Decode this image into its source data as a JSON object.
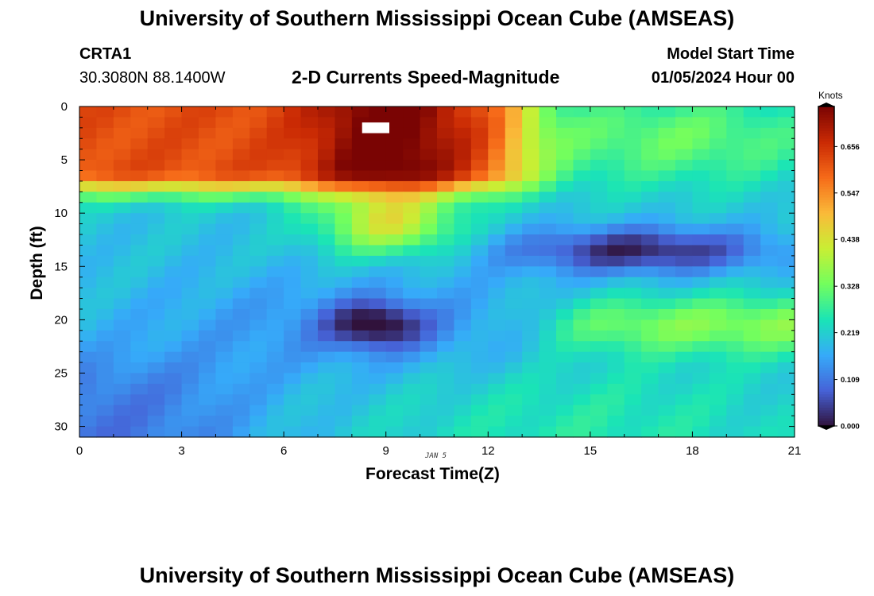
{
  "header": {
    "title": "University of Southern Mississippi Ocean Cube (AMSEAS)",
    "station": "CRTA1",
    "coords": "30.3080N  88.1400W",
    "subtitle": "2-D Currents Speed-Magnitude",
    "model_start_label": "Model Start Time",
    "model_start_value": "01/05/2024 Hour 00"
  },
  "footer": {
    "title": "University of Southern Mississippi Ocean Cube (AMSEAS)"
  },
  "chart_data": {
    "type": "heatmap",
    "xlabel": "Forecast Time(Z)",
    "ylabel": "Depth (ft)",
    "date_label": "JAN 5",
    "xlim": [
      0,
      21
    ],
    "ylim": [
      0,
      31
    ],
    "x_ticks": [
      "0",
      "3",
      "6",
      "9",
      "12",
      "15",
      "18",
      "21"
    ],
    "y_ticks": [
      "0",
      "5",
      "10",
      "15",
      "20",
      "25",
      "30"
    ],
    "colorbar": {
      "title": "Knots",
      "range": [
        0.0,
        0.75
      ],
      "ticks": [
        "0.000",
        "0.109",
        "0.219",
        "0.328",
        "0.438",
        "0.547",
        "0.656"
      ],
      "colors": [
        "#30123b",
        "#4662d7",
        "#36aaf9",
        "#1ae4b6",
        "#72fe5e",
        "#c8ef34",
        "#faba39",
        "#f66b19",
        "#ca2a04",
        "#7a0403"
      ]
    },
    "depth_step_ft": 1,
    "time_step_h": 0.5,
    "note": "Grid values (knots) are sampled from a smooth field reconstructed from the image; rows are depth levels from 0 to 30 ft, columns are forecast hours 0 to 21.",
    "field_summary": [
      {
        "region": "surface 0-8 ft, hours 0-13",
        "speed_knots": 0.62
      },
      {
        "region": "surface core near hour 9",
        "speed_knots": 0.72
      },
      {
        "region": "near-surface hours 14-21",
        "speed_knots": 0.31
      },
      {
        "region": "13-14 ft, hours 15-19",
        "speed_knots": 0.02
      },
      {
        "region": "20-21 ft near hour 8.7",
        "speed_knots": 0.03
      },
      {
        "region": "19-22 ft, hours 15-21",
        "speed_knots": 0.37
      },
      {
        "region": "bottom 26-31 ft, hours 0-3",
        "speed_knots": 0.09
      },
      {
        "region": "bottom 26-31 ft, hours 12-19",
        "speed_knots": 0.28
      }
    ]
  }
}
